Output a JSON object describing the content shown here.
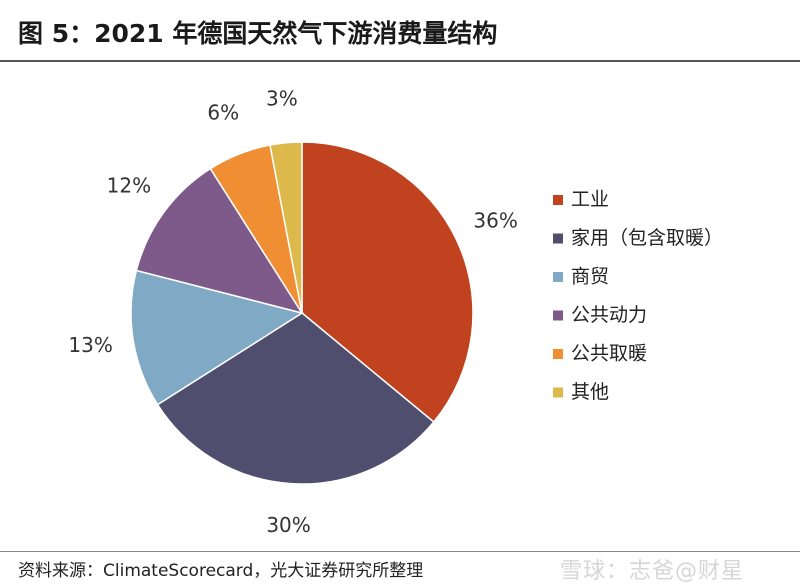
{
  "header": {
    "title": "图 5：2021 年德国天然气下游消费量结构"
  },
  "footer": {
    "source": "资料来源：ClimateScorecard，光大证券研究所整理",
    "watermark": "雪球：志爸@财星"
  },
  "chart_data": {
    "type": "pie",
    "title": "",
    "start_angle_deg": 90,
    "direction": "clockwise",
    "legend_position": "right",
    "slices": [
      {
        "label": "工业",
        "value": 36,
        "display": "36%",
        "color": "#C0421F"
      },
      {
        "label": "家用（包含取暖）",
        "value": 30,
        "display": "30%",
        "color": "#4F4E6E"
      },
      {
        "label": "商贸",
        "value": 13,
        "display": "13%",
        "color": "#7FA9C4"
      },
      {
        "label": "公共动力",
        "value": 12,
        "display": "12%",
        "color": "#7E5A8A"
      },
      {
        "label": "公共取暖",
        "value": 6,
        "display": "6%",
        "color": "#F08E34"
      },
      {
        "label": "其他",
        "value": 3,
        "display": "3%",
        "color": "#DDB94C"
      }
    ]
  }
}
